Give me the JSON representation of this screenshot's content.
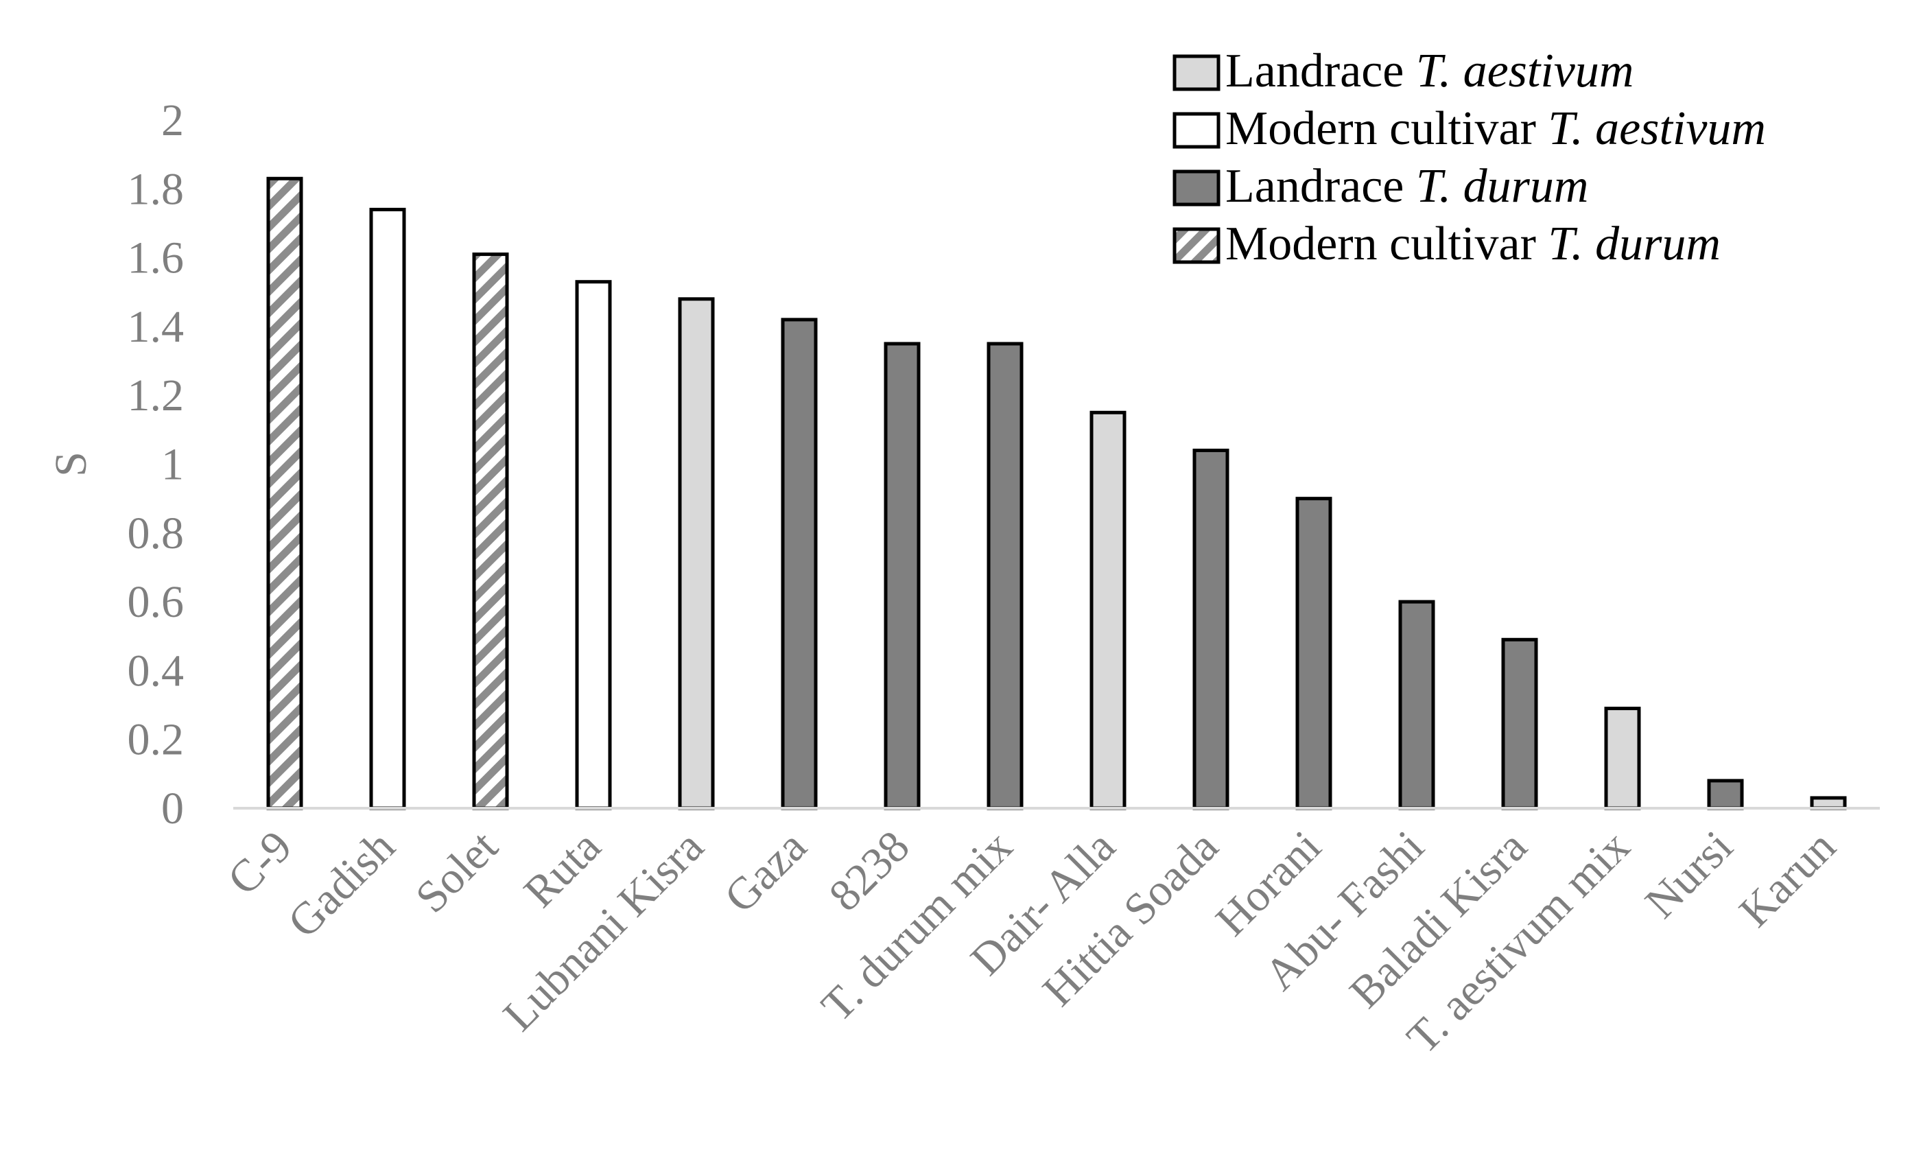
{
  "chart_data": {
    "type": "bar",
    "title": "",
    "xlabel": "",
    "ylabel": "S",
    "ylim": [
      0,
      2
    ],
    "yticks": [
      "0",
      "0.2",
      "0.4",
      "0.6",
      "0.8",
      "1",
      "1.2",
      "1.4",
      "1.6",
      "1.8",
      "2"
    ],
    "grid": false,
    "legend_position": "top-right",
    "categories": [
      "C-9",
      "Gadish",
      "Solet",
      "Ruta",
      "Lubnani Kisra",
      "Gaza",
      "8238",
      "T. durum mix",
      "Dair- Alla",
      "Hittia Soada",
      "Horani",
      "Abu- Fashi",
      "Baladi Kisra",
      "T. aestivum mix",
      "Nursi",
      "Karun"
    ],
    "values": [
      1.83,
      1.74,
      1.61,
      1.53,
      1.48,
      1.42,
      1.35,
      1.35,
      1.15,
      1.04,
      0.9,
      0.6,
      0.49,
      0.29,
      0.08,
      0.03
    ],
    "groups": [
      "modern-durum",
      "modern-aestivum",
      "modern-durum",
      "modern-aestivum",
      "landrace-aestivum",
      "landrace-durum",
      "landrace-durum",
      "landrace-durum",
      "landrace-aestivum",
      "landrace-durum",
      "landrace-durum",
      "landrace-durum",
      "landrace-durum",
      "landrace-aestivum",
      "landrace-durum",
      "landrace-aestivum"
    ],
    "legend": [
      {
        "key": "landrace-aestivum",
        "prefix": "Landrace ",
        "species": "T. aestivum",
        "fill": "#d9d9d9",
        "pattern": "solid"
      },
      {
        "key": "modern-aestivum",
        "prefix": "Modern cultivar ",
        "species": "T. aestivum",
        "fill": "#ffffff",
        "pattern": "solid"
      },
      {
        "key": "landrace-durum",
        "prefix": "Landrace ",
        "species": "T. durum",
        "fill": "#808080",
        "pattern": "solid"
      },
      {
        "key": "modern-durum",
        "prefix": "Modern cultivar ",
        "species": "T. durum",
        "fill": "#8c8c8c",
        "pattern": "diagonal-stripes"
      }
    ],
    "colors": {
      "axis_line": "#d9d9d9",
      "tick_text": "#7f7f7f",
      "bar_outline": "#000000"
    }
  }
}
